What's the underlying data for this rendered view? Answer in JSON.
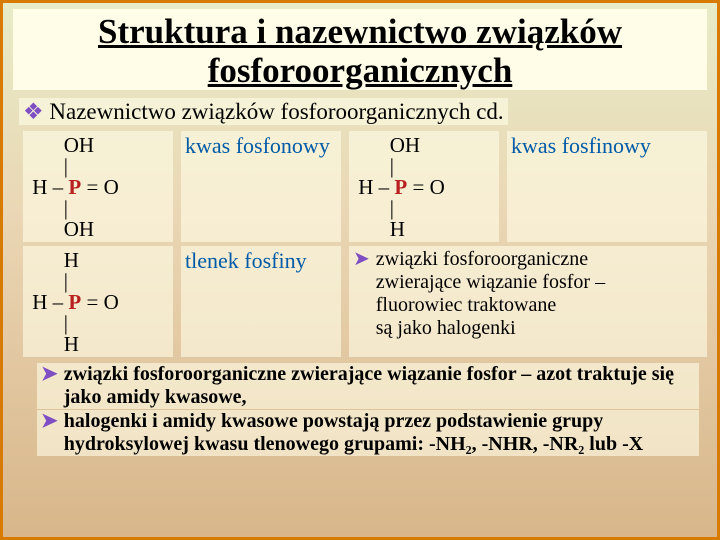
{
  "colors": {
    "border": "#d97a00",
    "accent": "#7e4ec2",
    "bg_top": "#e7ecc6",
    "bg_mid": "#ead6b4",
    "bg_bot": "#d8b68a",
    "p_atom": "#b82020",
    "label_blue": "#005aa8"
  },
  "title": "Struktura i nazewnictwo związków fosforoorganicznych",
  "subtitle_bullet": "❖",
  "subtitle": "Nazewnictwo związków fosforoorganicznych cd.",
  "formulas": {
    "f1": {
      "top": "OH",
      "mid_left": "H – ",
      "mid_right": " = O",
      "bot": "OH"
    },
    "f2": {
      "top": "OH",
      "mid_left": "H – ",
      "mid_right": " = O",
      "bot": "H"
    },
    "f3": {
      "top": "H",
      "mid_left": "H – ",
      "mid_right": " = O",
      "bot": "H"
    }
  },
  "labels": {
    "l1": " kwas fosfonowy",
    "l2": "kwas fosfinowy",
    "l3": "tlenek fosfiny"
  },
  "note_arrow": "➤",
  "note_lines": [
    "związki fosforoorganiczne",
    "zwierające wiązanie fosfor –",
    "fluorowiec traktowane",
    "są jako halogenki"
  ],
  "footnotes": [
    "związki fosforoorganiczne zwierające wiązanie fosfor – azot traktuje się jako amidy kwasowe,",
    "halogenki i amidy kwasowe powstają przez podstawienie grupy hydroksylowej kwasu tlenowego grupami: -NH₂, -NHR, -NR₂ lub -X"
  ]
}
